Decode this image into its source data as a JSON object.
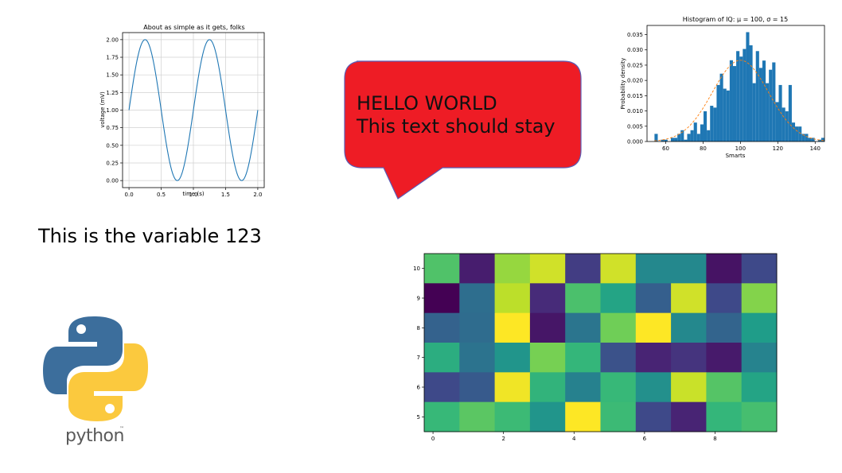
{
  "text_variable": "This is the variable 123",
  "bubble": {
    "line1": "HELLO WORLD",
    "line2": "This text should stay",
    "fill": "#ee1c25",
    "stroke": "#5b5bb5"
  },
  "logo": {
    "word": "python",
    "tm": "™",
    "icon": "python-logo-icon",
    "blue": "#3c6e9c",
    "yellow": "#fbc93e"
  },
  "chart_data": [
    {
      "type": "line",
      "title": "About as simple as it gets, folks",
      "xlabel": "time (s)",
      "ylabel": "voltage (mV)",
      "xlim": [
        -0.1,
        2.1
      ],
      "ylim": [
        -0.1,
        2.1
      ],
      "xticks": [
        "0.0",
        "0.5",
        "1.0",
        "1.5",
        "2.0"
      ],
      "yticks": [
        "0.00",
        "0.25",
        "0.50",
        "0.75",
        "1.00",
        "1.25",
        "1.50",
        "1.75",
        "2.00"
      ],
      "grid": true,
      "color": "#1f77b4",
      "series": [
        {
          "function": "1 + sin(2*pi*t)",
          "x_range": [
            0,
            2
          ]
        }
      ]
    },
    {
      "type": "bar",
      "title": "Histogram of IQ: μ = 100, σ = 15",
      "xlabel": "Smarts",
      "ylabel": "Probability density",
      "xlim": [
        50,
        145
      ],
      "ylim": [
        0,
        0.038
      ],
      "xticks": [
        "60",
        "80",
        "100",
        "120",
        "140"
      ],
      "yticks": [
        "0.000",
        "0.005",
        "0.010",
        "0.015",
        "0.020",
        "0.025",
        "0.030",
        "0.035"
      ],
      "bins_start": 54,
      "bin_width": 1.75,
      "values": [
        0.0025,
        0,
        0.0006,
        0.0006,
        0,
        0.0012,
        0.0012,
        0.0025,
        0.0037,
        0.0006,
        0.0025,
        0.0037,
        0.0062,
        0.0025,
        0.0056,
        0.0099,
        0.0037,
        0.0117,
        0.0111,
        0.0185,
        0.0222,
        0.0173,
        0.0167,
        0.0266,
        0.0247,
        0.0296,
        0.0278,
        0.0303,
        0.0358,
        0.0315,
        0.0191,
        0.0296,
        0.0241,
        0.0265,
        0.0191,
        0.0235,
        0.0259,
        0.0129,
        0.0185,
        0.0111,
        0.0099,
        0.0185,
        0.0062,
        0.0049,
        0.0049,
        0.0025,
        0.0025,
        0.0012,
        0.0012,
        0,
        0.0006,
        0.0012
      ],
      "color": "#1f77b4",
      "fit_curve": {
        "mu": 100,
        "sigma": 15,
        "color": "#ff7f0e",
        "style": "dashed"
      }
    },
    {
      "type": "heatmap",
      "x_ticks": [
        "0",
        "2",
        "4",
        "6",
        "8"
      ],
      "y_ticks": [
        "5",
        "6",
        "7",
        "8",
        "9",
        "10"
      ],
      "colormap": "viridis",
      "rows": [
        {
          "y": "10",
          "values": [
            0.72,
            0.08,
            0.84,
            0.93,
            0.18,
            0.93,
            0.47,
            0.47,
            0.05,
            0.22
          ]
        },
        {
          "y": "9",
          "values": [
            0.0,
            0.36,
            0.9,
            0.12,
            0.71,
            0.58,
            0.3,
            0.93,
            0.22,
            0.81
          ]
        },
        {
          "y": "8",
          "values": [
            0.31,
            0.35,
            1.0,
            0.06,
            0.39,
            0.78,
            1.0,
            0.47,
            0.32,
            0.55
          ]
        },
        {
          "y": "7",
          "values": [
            0.62,
            0.38,
            0.52,
            0.79,
            0.66,
            0.25,
            0.1,
            0.15,
            0.07,
            0.45
          ]
        },
        {
          "y": "6",
          "values": [
            0.22,
            0.28,
            0.98,
            0.65,
            0.44,
            0.67,
            0.5,
            0.92,
            0.73,
            0.58
          ]
        },
        {
          "y": "5",
          "values": [
            0.67,
            0.74,
            0.68,
            0.52,
            1.0,
            0.68,
            0.22,
            0.1,
            0.66,
            0.7
          ]
        }
      ]
    }
  ]
}
